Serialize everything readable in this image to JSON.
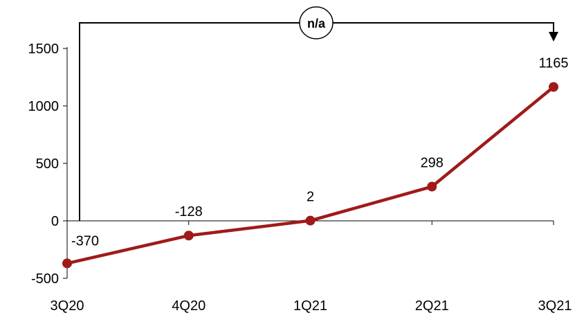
{
  "chart_data": {
    "type": "line",
    "categories": [
      "3Q20",
      "4Q20",
      "1Q21",
      "2Q21",
      "3Q21"
    ],
    "series": [
      {
        "values": [
          -370,
          -128,
          2,
          298,
          1165
        ],
        "color": "#A01A1A"
      }
    ],
    "data_labels": [
      "-370",
      "-128",
      "2",
      "298",
      "1165"
    ],
    "y_ticks": [
      -500,
      0,
      500,
      1000,
      1500
    ],
    "y_tick_labels": [
      "-500",
      "0",
      "500",
      "1000",
      "1500"
    ],
    "ylim": [
      -500,
      1700
    ],
    "title": "",
    "xlabel": "",
    "ylabel": "",
    "grid": false,
    "legend": "none",
    "annotation": {
      "text": "n/a",
      "from_category": "3Q20",
      "to_category": "3Q21",
      "arrow": "down"
    }
  }
}
